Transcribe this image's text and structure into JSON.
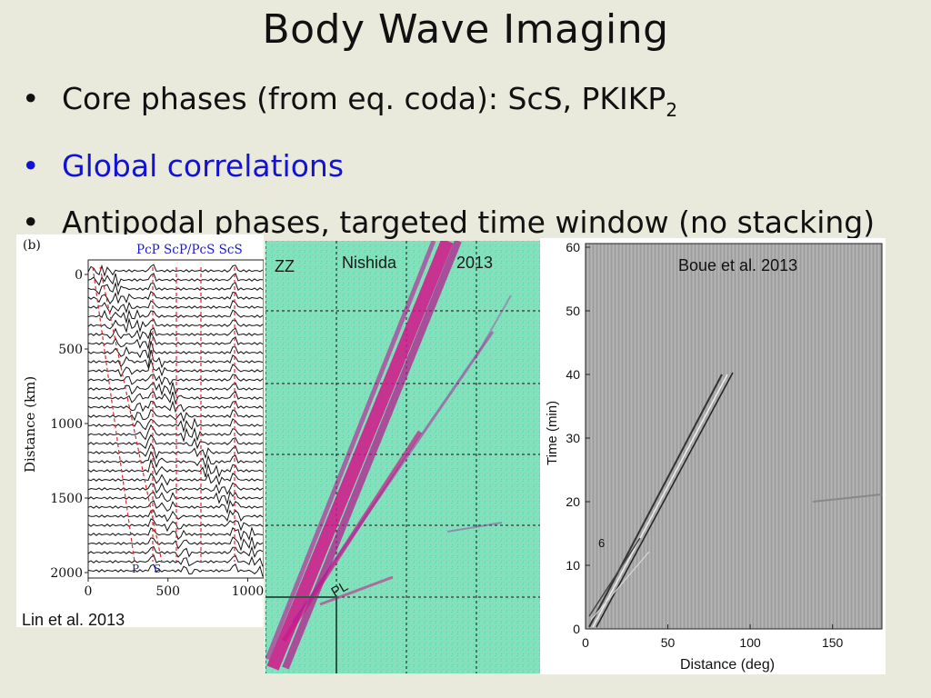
{
  "title": "Body Wave Imaging",
  "bullets": [
    {
      "text": "Core phases (from eq. coda): ScS, PKIKP",
      "sub": "2",
      "color": "#111111"
    },
    {
      "text": "Global correlations",
      "sub": "",
      "color": "#1212d6"
    },
    {
      "text": "Antipodal phases, targeted time window (no stacking)",
      "sub": "",
      "color": "#111111"
    }
  ],
  "panel_lin": {
    "panel_label": "(b)",
    "phase_labels_top": "PcP ScP/PcS ScS",
    "phase_p": "P",
    "phase_s": "S",
    "ylabel": "Distance (km)",
    "yticks": [
      "0",
      "500",
      "1000",
      "1500",
      "2000"
    ],
    "xticks": [
      "0",
      "500",
      "1000"
    ],
    "credit": "Lin et al. 2013"
  },
  "panel_nishida": {
    "component": "ZZ",
    "credit_name": "Nishida",
    "credit_year": "2013",
    "phase_label": "PL"
  },
  "panel_boue": {
    "credit": "Boue et al. 2013",
    "ylabel": "Time (min)",
    "xlabel": "Distance (deg)",
    "yticks": [
      "0",
      "10",
      "20",
      "30",
      "40",
      "50",
      "60"
    ],
    "xticks": [
      "0",
      "50",
      "100",
      "150"
    ],
    "annotation": "6"
  },
  "chart_data": [
    {
      "type": "line",
      "xlabel": "",
      "ylabel": "Distance (km)",
      "ylim": [
        0,
        2000
      ],
      "xlim": [
        0,
        1100
      ],
      "x_ticks": [
        0,
        500,
        1000
      ],
      "y_ticks": [
        0,
        500,
        1000,
        1500,
        2000
      ]
    },
    {
      "type": "heatmap",
      "title": "",
      "xlabel": "",
      "ylabel": ""
    },
    {
      "type": "heatmap",
      "xlabel": "Distance (deg)",
      "ylabel": "Time (min)",
      "xlim": [
        0,
        180
      ],
      "ylim": [
        0,
        60
      ],
      "x_ticks": [
        0,
        50,
        100,
        150
      ],
      "y_ticks": [
        0,
        10,
        20,
        30,
        40,
        50,
        60
      ]
    }
  ]
}
